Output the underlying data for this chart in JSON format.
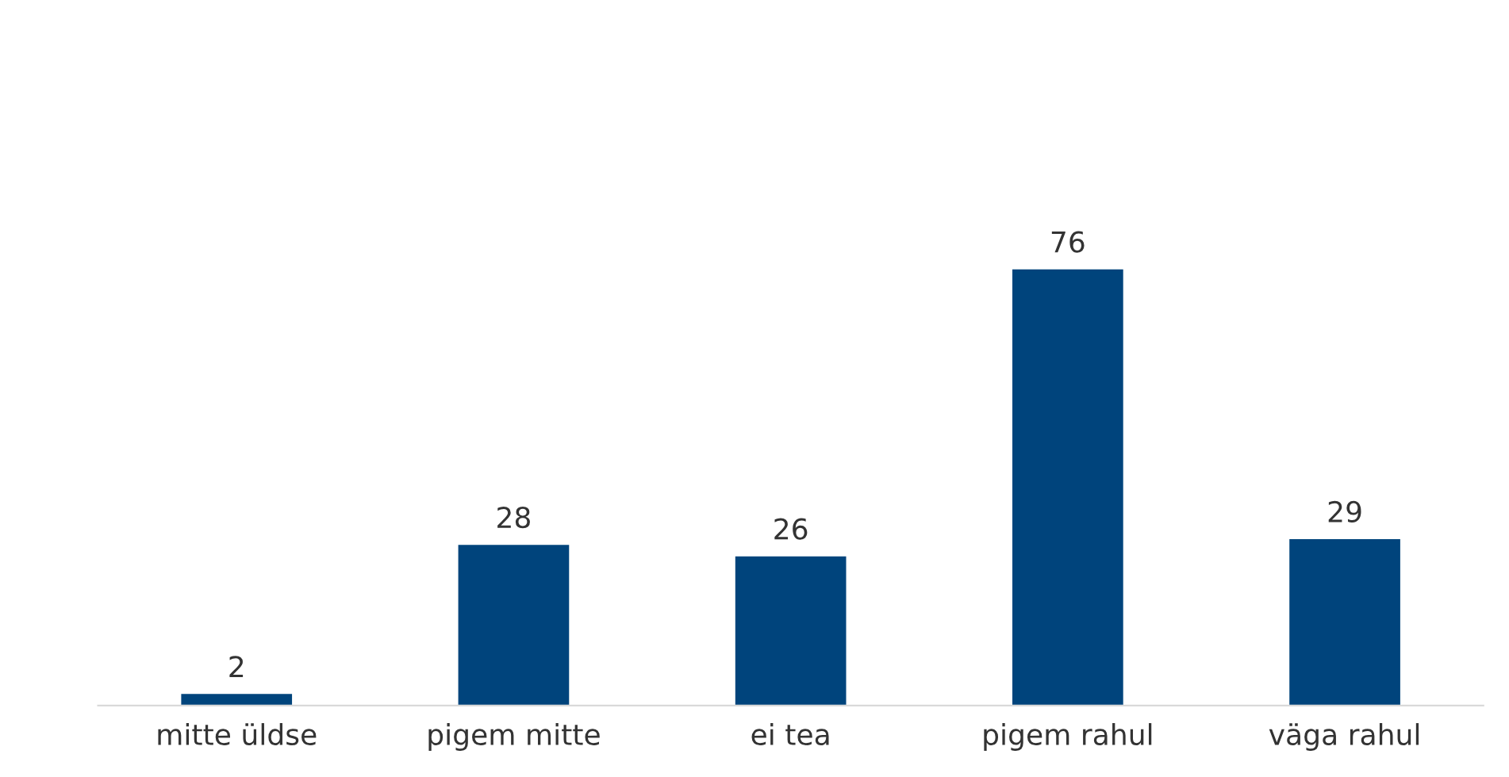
{
  "chart_data": {
    "type": "bar",
    "categories": [
      "mitte üldse",
      "pigem mitte",
      "ei tea",
      "pigem rahul",
      "väga rahul"
    ],
    "values": [
      2,
      28,
      26,
      76,
      29
    ],
    "color": "#00447c",
    "data_labels": true,
    "grid": false,
    "legend": false
  }
}
